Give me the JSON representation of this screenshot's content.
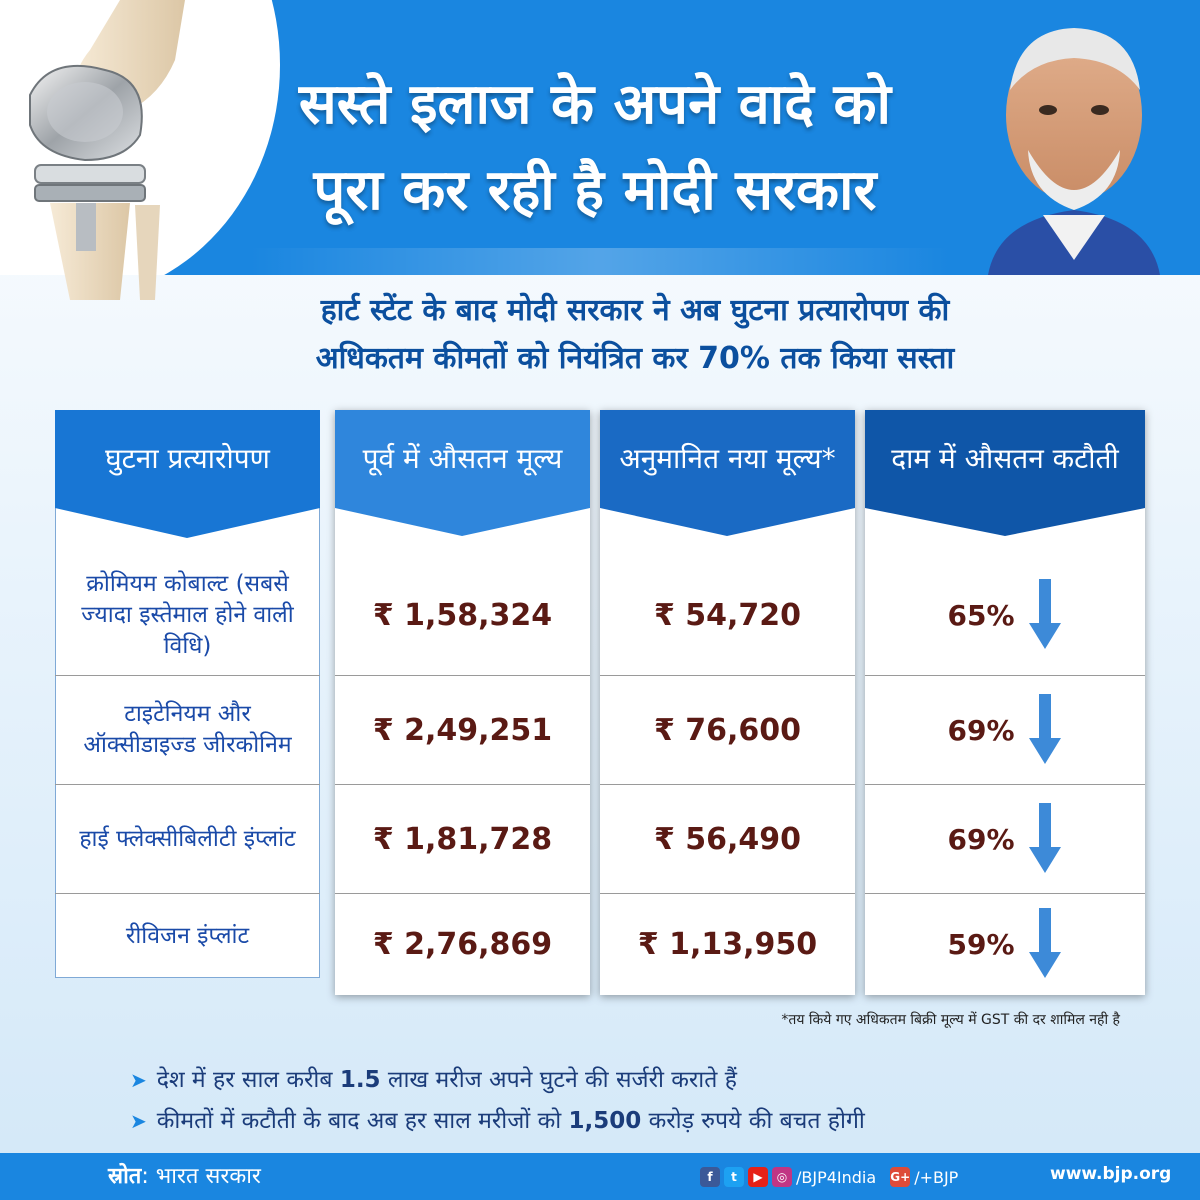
{
  "header": {
    "title_line1": "सस्ते इलाज के अपने वादे को",
    "title_line2": "पूरा कर रही है मोदी सरकार",
    "colors": {
      "header_blue": "#1a86e0",
      "text_blue": "#0b4f9e",
      "price_brown": "#5a1a14"
    }
  },
  "subheading": {
    "line1": "हार्ट स्टेंट के बाद मोदी सरकार ने अब घुटना प्रत्यारोपण की",
    "line2": "अधिकतम कीमतों को नियंत्रित कर 70% तक किया सस्ता"
  },
  "table": {
    "headers": [
      "घुटना प्रत्यारोपण",
      "पूर्व में औसतन मूल्य",
      "अनुमानित नया मूल्य*",
      "दाम में औसतन कटौती"
    ],
    "rows": [
      {
        "type": "क्रोमियम कोबाल्ट (सबसे ज्यादा इस्तेमाल होने वाली विधि)",
        "old_price": "₹ 1,58,324",
        "new_price": "₹ 54,720",
        "cut": "65%"
      },
      {
        "type": "टाइटेनियम और ऑक्सीडाइज्ड जीरकोनिम",
        "old_price": "₹ 2,49,251",
        "new_price": "₹ 76,600",
        "cut": "69%"
      },
      {
        "type": "हाई फ्लेक्सीबिलीटी इंप्लांट",
        "old_price": "₹ 1,81,728",
        "new_price": "₹ 56,490",
        "cut": "69%"
      },
      {
        "type": "रीविजन इंप्लांट",
        "old_price": "₹ 2,76,869",
        "new_price": "₹ 1,13,950",
        "cut": "59%"
      }
    ]
  },
  "footnote": "*तय किये गए अधिकतम बिक्री मूल्य में GST की दर शामिल नही है",
  "bullets": [
    {
      "pre": "देश में हर साल करीब ",
      "bold": "1.5",
      "post": " लाख मरीज अपने घुटने की सर्जरी कराते हैं"
    },
    {
      "pre": "कीमतों में कटौती के बाद अब हर साल मरीजों को ",
      "bold": "1,500",
      "post": " करोड़ रुपये की बचत होगी"
    }
  ],
  "footer": {
    "source_label": "स्रोत",
    "source_value": ": भारत सरकार",
    "social_handle": "/BJP4India",
    "gplus_handle": "/+BJP",
    "website": "www.bjp.org"
  }
}
